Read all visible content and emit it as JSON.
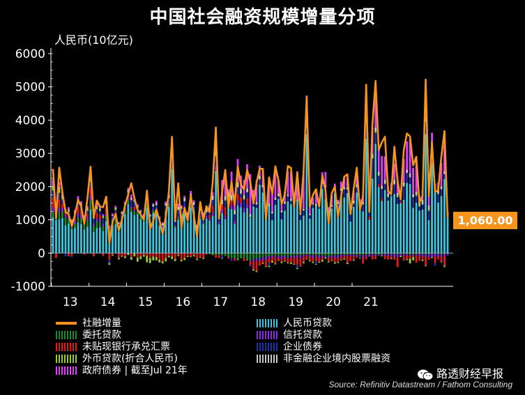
{
  "title": "中国社会融资规模增量分项",
  "unit_label": "人民币(10亿元)",
  "callout": "1,060.00",
  "source": "Source: Refinitiv Datastream / Fathom Consulting",
  "brand": "路透财经早报",
  "chart_data": {
    "type": "bar",
    "stacked": true,
    "ylim": [
      -1000,
      6000
    ],
    "yticks": [
      -1000,
      0,
      1000,
      2000,
      3000,
      4000,
      5000,
      6000
    ],
    "xticks": [
      "13",
      "14",
      "15",
      "16",
      "17",
      "18",
      "19",
      "20",
      "21"
    ],
    "grid": false,
    "legend_position": "bottom",
    "colors": {
      "total": "#F7941D",
      "rmb_loans": "#3EC6E0",
      "entrusted": "#1E8C2E",
      "trust": "#8A2BE2",
      "undiscounted": "#E31A1C",
      "corp_bonds": "#1F2FA8",
      "fx_loans": "#9ACD32",
      "equity": "#C8C8C8",
      "gov_bonds": "#E040FB"
    },
    "series_labels": {
      "total": "社融增量",
      "rmb_loans": "人民币贷款",
      "entrusted": "委托贷款",
      "trust": "信托贷款",
      "undiscounted": "未贴现银行承兑汇票",
      "corp_bonds": "企业债券",
      "fx_loans": "外币贷款(折合人民币)",
      "equity": "非金融企业境内股票融资",
      "gov_bonds": "政府债券 | 截至Jul 21年"
    },
    "total": [
      2530,
      1050,
      2570,
      1830,
      1240,
      1170,
      810,
      1150,
      1600,
      1400,
      880,
      1650,
      2600,
      1080,
      1580,
      1400,
      1380,
      1700,
      300,
      940,
      1180,
      680,
      1000,
      1430,
      1760,
      2100,
      1650,
      1300,
      1160,
      1000,
      1880,
      730,
      960,
      1310,
      990,
      580,
      1080,
      1850,
      3500,
      1000,
      2100,
      770,
      1360,
      980,
      1740,
      1120,
      500,
      1540,
      1000,
      1410,
      1230,
      2120,
      3780,
      1040,
      1840,
      2500,
      1370,
      2140,
      1450,
      2600,
      2060,
      1910,
      2500,
      2140,
      1490,
      2120,
      2540,
      2530,
      1010,
      2280,
      1790,
      2610,
      2190,
      1480,
      1750,
      2620,
      2560,
      1400,
      2420,
      1250,
      2450,
      4690,
      1390,
      1750,
      1920,
      1400,
      2330,
      1890,
      900,
      1800,
      2000,
      1080,
      1700,
      2300,
      2370,
      1180,
      1930,
      2570,
      1300,
      1720,
      5070,
      1250,
      3870,
      5180,
      3100,
      3330,
      3500,
      1870,
      1770,
      3200,
      2190,
      1620,
      3100,
      3600,
      3510,
      2640,
      2900,
      1510,
      1720,
      5220,
      1710,
      3340,
      1840,
      1890,
      2900,
      3670,
      1060
    ],
    "rmb_loans": [
      1080,
      1000,
      1020,
      1050,
      840,
      890,
      730,
      750,
      920,
      870,
      710,
      790,
      1320,
      640,
      750,
      780,
      660,
      950,
      620,
      830,
      870,
      650,
      1000,
      1170,
      1470,
      1240,
      1150,
      1170,
      1020,
      960,
      1360,
      940,
      1210,
      1200,
      820,
      710,
      1230,
      1390,
      2510,
      770,
      1000,
      1150,
      1330,
      920,
      1380,
      1280,
      580,
      1030,
      880,
      1040,
      980,
      1120,
      2470,
      870,
      1200,
      1020,
      1440,
      1330,
      880,
      1430,
      1380,
      1230,
      1350,
      1070,
      1400,
      1360,
      2060,
      1820,
      1170,
      1410,
      990,
      1450,
      1630,
      1020,
      1280,
      1560,
      1470,
      1470,
      1560,
      1000,
      1130,
      3580,
      1040,
      1360,
      1420,
      1340,
      1930,
      1630,
      1060,
      1340,
      1810,
      1280,
      1720,
      1670,
      1810,
      950,
      1390,
      1820,
      1340,
      1260,
      3440,
      1000,
      2240,
      3290,
      1990,
      1570,
      1900,
      1580,
      1720,
      1780,
      1480,
      1500,
      1600,
      2110,
      2080,
      1360,
      1520,
      1280,
      1310,
      3580,
      990,
      2710,
      1870,
      1520,
      1720,
      2230,
      1060
    ],
    "entrusted": [
      150,
      120,
      180,
      200,
      220,
      150,
      120,
      130,
      160,
      180,
      170,
      200,
      250,
      180,
      200,
      160,
      140,
      170,
      100,
      150,
      180,
      120,
      90,
      130,
      120,
      100,
      110,
      90,
      80,
      70,
      110,
      60,
      70,
      60,
      50,
      40,
      60,
      70,
      80,
      50,
      60,
      40,
      40,
      40,
      50,
      40,
      30,
      40,
      30,
      -20,
      -30,
      -40,
      -60,
      -50,
      -70,
      -90,
      -120,
      -140,
      -160,
      -180,
      -160,
      -150,
      -200,
      -230,
      -180,
      -170,
      -150,
      -130,
      -100,
      -90,
      -80,
      -70,
      -90,
      -100,
      -80,
      -120,
      -90,
      -70,
      -60,
      -80,
      -50,
      -40,
      -60,
      -70,
      -50,
      -80,
      -60,
      -90,
      -100,
      -80,
      -60,
      -70,
      -40,
      -50,
      -60,
      -30,
      -40,
      -50,
      -60,
      -70,
      -50,
      -40,
      -30,
      -40,
      -50,
      -40,
      -30,
      -20,
      -30,
      -40,
      -30,
      -20,
      -30,
      -40,
      -50,
      -30,
      -40,
      -20,
      -30,
      -40,
      -30,
      -20,
      -10,
      -30,
      -40,
      -20
    ],
    "trust": [
      150,
      100,
      160,
      120,
      90,
      80,
      60,
      80,
      110,
      100,
      70,
      100,
      180,
      60,
      90,
      80,
      70,
      100,
      50,
      60,
      70,
      50,
      40,
      60,
      70,
      50,
      40,
      30,
      20,
      10,
      40,
      10,
      20,
      30,
      10,
      5,
      20,
      40,
      60,
      20,
      40,
      20,
      40,
      30,
      60,
      50,
      40,
      60,
      50,
      80,
      70,
      100,
      150,
      80,
      120,
      110,
      90,
      120,
      100,
      150,
      140,
      130,
      120,
      -30,
      -60,
      -70,
      -80,
      -90,
      -100,
      -60,
      -50,
      -40,
      -70,
      -80,
      -60,
      -40,
      -50,
      -60,
      -70,
      -80,
      -40,
      -50,
      -60,
      -70,
      -50,
      -80,
      -60,
      -40,
      -50,
      -60,
      -70,
      -80,
      -60,
      -40,
      -30,
      -50,
      -60,
      -40,
      -30,
      -50,
      -60,
      -70,
      -40,
      -50,
      -30,
      -40,
      -50,
      -60,
      -70,
      -80,
      -90,
      -60,
      -50,
      -40,
      -30,
      -40,
      -50,
      -60,
      -70,
      -80,
      -90,
      -100,
      -90,
      -80,
      -70,
      -60,
      -50,
      -40
    ],
    "undiscounted": [
      300,
      -150,
      250,
      100,
      50,
      -100,
      -80,
      100,
      200,
      150,
      -50,
      80,
      200,
      -100,
      180,
      120,
      -90,
      150,
      -200,
      -50,
      100,
      -150,
      -80,
      -100,
      60,
      -120,
      90,
      -140,
      -100,
      -50,
      -80,
      -150,
      -100,
      -120,
      -200,
      -250,
      -150,
      -80,
      -100,
      -180,
      -50,
      -200,
      -150,
      -90,
      -100,
      -60,
      -180,
      -120,
      -150,
      -30,
      100,
      200,
      -80,
      -100,
      150,
      250,
      -50,
      120,
      -70,
      200,
      160,
      -90,
      180,
      -100,
      -250,
      -300,
      -150,
      -80,
      -200,
      -150,
      -100,
      -200,
      -50,
      -80,
      -100,
      -120,
      -150,
      -200,
      -220,
      -250,
      -180,
      -80,
      -100,
      -120,
      -150,
      -100,
      -80,
      150,
      -100,
      -80,
      -150,
      -120,
      -100,
      -80,
      -200,
      -160,
      -100,
      -50,
      50,
      -200,
      -80,
      100,
      -120,
      -90,
      80,
      60,
      -100,
      -120,
      -50,
      -80,
      -300,
      60,
      -150,
      -100,
      -80,
      -50,
      -200,
      -150,
      -100,
      -250,
      -80,
      100,
      -200,
      -80,
      -150,
      -300
    ],
    "corp_bonds": [
      200,
      100,
      200,
      150,
      -100,
      100,
      -50,
      100,
      120,
      100,
      80,
      100,
      200,
      150,
      100,
      120,
      180,
      120,
      -100,
      80,
      70,
      60,
      50,
      80,
      100,
      200,
      150,
      80,
      100,
      60,
      150,
      90,
      100,
      150,
      100,
      80,
      120,
      150,
      300,
      100,
      200,
      120,
      150,
      100,
      180,
      80,
      90,
      150,
      120,
      100,
      120,
      180,
      300,
      60,
      -80,
      200,
      150,
      -100,
      180,
      200,
      100,
      250,
      180,
      -50,
      100,
      100,
      150,
      150,
      60,
      -80,
      200,
      150,
      80,
      200,
      200,
      150,
      100,
      80,
      -100,
      150,
      150,
      200,
      100,
      100,
      -80,
      100,
      150,
      200,
      150,
      50,
      80,
      200,
      150,
      250,
      100,
      200,
      100,
      150,
      -50,
      200,
      450,
      120,
      600,
      330,
      250,
      300,
      180,
      100,
      150,
      280,
      200,
      150,
      400,
      300,
      200,
      320,
      200,
      120,
      150,
      370,
      280,
      100,
      -80,
      250,
      200,
      150,
      -30
    ],
    "fx_loans": [
      100,
      80,
      120,
      90,
      60,
      70,
      50,
      60,
      80,
      70,
      50,
      60,
      100,
      40,
      60,
      50,
      40,
      60,
      -50,
      -30,
      40,
      -40,
      -30,
      -50,
      -60,
      -80,
      -100,
      -120,
      -80,
      -60,
      -200,
      -150,
      -120,
      -100,
      -80,
      -60,
      -100,
      -50,
      -80,
      -60,
      -40,
      -50,
      -60,
      -30,
      -20,
      -40,
      -30,
      -20,
      -30,
      20,
      30,
      -20,
      40,
      30,
      -20,
      20,
      30,
      40,
      20,
      -30,
      20,
      30,
      -20,
      20,
      -40,
      -30,
      20,
      -30,
      -20,
      -40,
      -60,
      -30,
      -20,
      -40,
      -20,
      -30,
      -40,
      -20,
      -30,
      20,
      -40,
      -20,
      -30,
      -40,
      -20,
      -30,
      -60,
      -40,
      -30,
      -20,
      -40,
      -30,
      -20,
      -30,
      -40,
      20,
      -30,
      30,
      -20,
      20,
      40,
      20,
      30,
      40,
      30,
      -20,
      20,
      30,
      -30,
      20,
      30,
      -40,
      20,
      -30,
      -150,
      -100,
      20,
      30,
      -40,
      -20,
      30,
      -30,
      20,
      30,
      -20,
      -40
    ],
    "equity": [
      40,
      30,
      50,
      40,
      20,
      30,
      20,
      30,
      40,
      30,
      20,
      30,
      60,
      20,
      30,
      30,
      20,
      40,
      20,
      30,
      40,
      30,
      40,
      50,
      60,
      70,
      60,
      50,
      40,
      50,
      70,
      50,
      60,
      70,
      80,
      60,
      70,
      90,
      120,
      80,
      90,
      70,
      100,
      110,
      120,
      80,
      90,
      110,
      100,
      120,
      110,
      130,
      150,
      100,
      130,
      120,
      110,
      140,
      120,
      150,
      130,
      110,
      120,
      90,
      100,
      80,
      100,
      90,
      70,
      80,
      60,
      70,
      80,
      60,
      70,
      50,
      60,
      70,
      50,
      40,
      50,
      60,
      40,
      50,
      60,
      40,
      50,
      60,
      70,
      60,
      50,
      70,
      80,
      60,
      70,
      80,
      90,
      70,
      80,
      60,
      100,
      80,
      110,
      120,
      100,
      90,
      110,
      80,
      90,
      120,
      100,
      90,
      110,
      100,
      120,
      90,
      110,
      100,
      140,
      120,
      130,
      110,
      100,
      120,
      90,
      80
    ],
    "gov_bonds": [
      200,
      80,
      150,
      100,
      50,
      60,
      40,
      50,
      80,
      60,
      40,
      60,
      150,
      50,
      80,
      70,
      60,
      90,
      30,
      40,
      50,
      30,
      40,
      60,
      80,
      100,
      70,
      50,
      40,
      30,
      80,
      30,
      40,
      60,
      40,
      30,
      50,
      80,
      150,
      50,
      100,
      40,
      60,
      40,
      80,
      60,
      30,
      70,
      50,
      60,
      50,
      100,
      200,
      80,
      600,
      800,
      100,
      700,
      300,
      700,
      400,
      450,
      720,
      1200,
      300,
      650,
      300,
      500,
      100,
      750,
      600,
      800,
      400,
      300,
      300,
      700,
      800,
      200,
      850,
      150,
      1100,
      900,
      300,
      150,
      400,
      100,
      300,
      400,
      100,
      300,
      150,
      50,
      200,
      300,
      300,
      100,
      300,
      400,
      150,
      300,
      600,
      150,
      800,
      1050,
      800,
      900,
      700,
      200,
      150,
      500,
      400,
      100,
      700,
      850,
      1050,
      800,
      1000,
      200,
      300,
      700,
      350,
      600,
      100,
      200,
      700,
      800,
      200
    ]
  },
  "legend": [
    {
      "key": "total",
      "label": "社融增量"
    },
    {
      "key": "entrusted",
      "label": "委托贷款"
    },
    {
      "key": "undiscounted",
      "label": "未贴现银行承兑汇票"
    },
    {
      "key": "fx_loans",
      "label": "外币贷款(折合人民币)"
    },
    {
      "key": "gov_bonds",
      "label": "政府债券 | 截至Jul 21年"
    },
    {
      "key": "rmb_loans",
      "label": "人民币贷款"
    },
    {
      "key": "trust",
      "label": "信托贷款"
    },
    {
      "key": "corp_bonds",
      "label": "企业债券"
    },
    {
      "key": "equity",
      "label": "非金融企业境内股票融资"
    }
  ]
}
